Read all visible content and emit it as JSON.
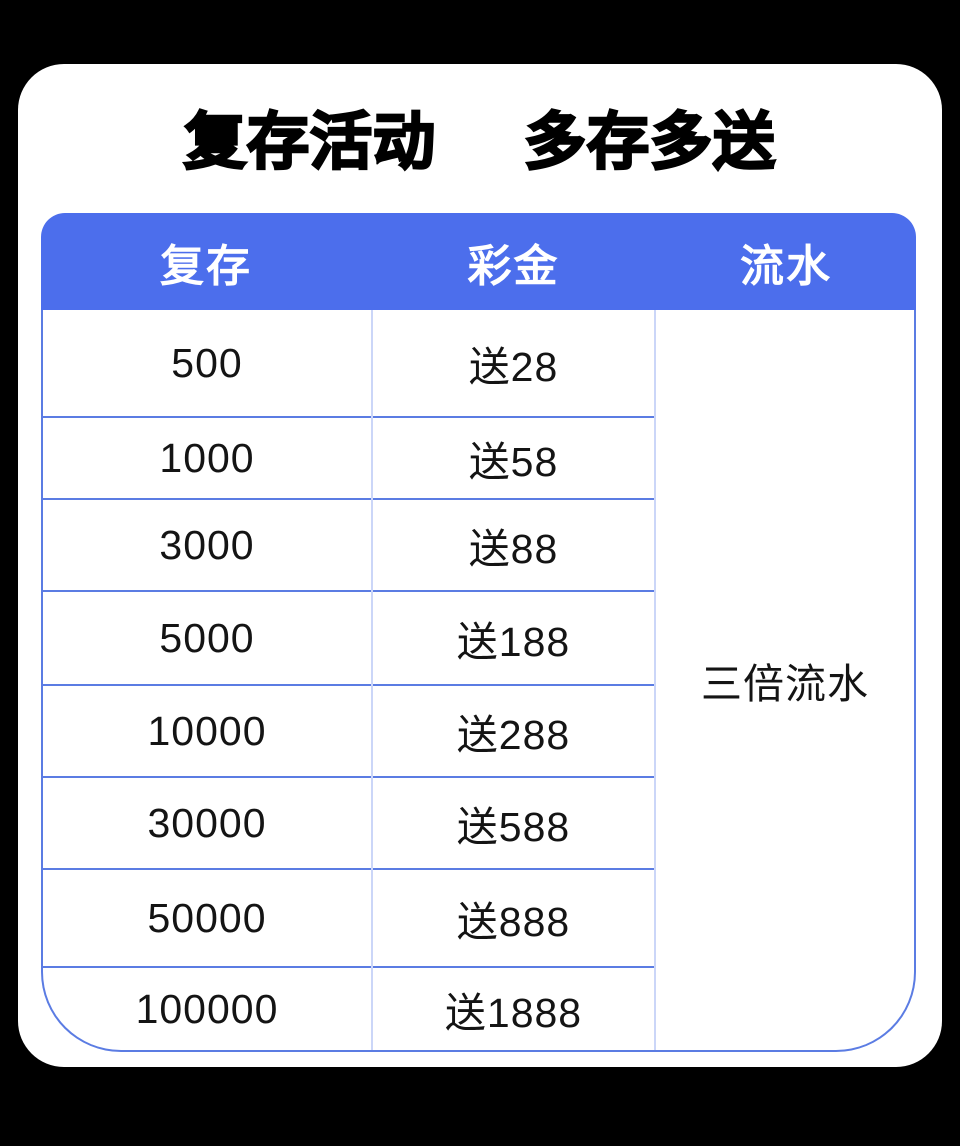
{
  "title": {
    "part1": "复存活动",
    "part2": "多存多送"
  },
  "table": {
    "columns": [
      "复存",
      "彩金",
      "流水"
    ],
    "rows": [
      {
        "deposit": "500",
        "bonus": "送28"
      },
      {
        "deposit": "1000",
        "bonus": "送58"
      },
      {
        "deposit": "3000",
        "bonus": "送88"
      },
      {
        "deposit": "5000",
        "bonus": "送188"
      },
      {
        "deposit": "10000",
        "bonus": "送288"
      },
      {
        "deposit": "30000",
        "bonus": "送588"
      },
      {
        "deposit": "50000",
        "bonus": "送888"
      },
      {
        "deposit": "100000",
        "bonus": "送1888"
      }
    ],
    "turnover_note": "三倍流水"
  },
  "colors": {
    "page_background": "#000000",
    "card_background": "#ffffff",
    "header_blue": "#4C6EEC",
    "grid_line_blue": "#5B7CE3",
    "divider_light_blue": "#CBD6F8",
    "header_text": "#ffffff",
    "body_text": "#141414"
  },
  "chart_data": {
    "type": "table",
    "title": "复存活动 多存多送",
    "columns": [
      "复存",
      "彩金",
      "流水"
    ],
    "rows": [
      [
        "500",
        "送28",
        "三倍流水"
      ],
      [
        "1000",
        "送58",
        "三倍流水"
      ],
      [
        "3000",
        "送88",
        "三倍流水"
      ],
      [
        "5000",
        "送188",
        "三倍流水"
      ],
      [
        "10000",
        "送288",
        "三倍流水"
      ],
      [
        "30000",
        "送588",
        "三倍流水"
      ],
      [
        "50000",
        "送888",
        "三倍流水"
      ],
      [
        "100000",
        "送1888",
        "三倍流水"
      ]
    ],
    "notes": "流水 column is a single merged cell reading 三倍流水 spanning all rows"
  }
}
